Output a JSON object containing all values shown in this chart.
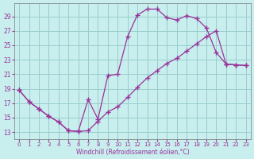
{
  "bg_color": "#c8eeee",
  "grid_color": "#99cccc",
  "line_color": "#993399",
  "xlim": [
    -0.5,
    23.5
  ],
  "ylim": [
    12.0,
    30.8
  ],
  "xticks": [
    0,
    1,
    2,
    3,
    4,
    5,
    6,
    7,
    8,
    9,
    10,
    11,
    12,
    13,
    14,
    15,
    16,
    17,
    18,
    19,
    20,
    21,
    22,
    23
  ],
  "yticks": [
    13,
    15,
    17,
    19,
    21,
    23,
    25,
    27,
    29
  ],
  "xlabel": "Windchill (Refroidissement éolien,°C)",
  "upper_x": [
    0,
    1,
    2,
    3,
    4,
    5,
    6,
    7,
    8,
    9,
    10,
    11,
    12,
    13,
    14,
    15,
    16,
    17,
    18,
    19,
    20,
    21,
    22,
    23
  ],
  "upper_y": [
    18.8,
    17.2,
    16.2,
    15.2,
    14.4,
    13.2,
    13.1,
    17.5,
    14.8,
    20.8,
    21.0,
    26.2,
    29.2,
    30.0,
    30.0,
    28.8,
    28.5,
    29.1,
    28.7,
    27.4,
    24.0,
    22.4,
    22.3,
    22.2
  ],
  "lower_x": [
    0,
    1,
    2,
    3,
    4,
    5,
    6,
    7,
    8,
    9,
    10,
    11,
    12,
    13,
    14,
    15,
    16,
    17,
    18,
    19,
    20,
    21,
    22,
    23
  ],
  "lower_y": [
    18.8,
    17.2,
    16.2,
    15.2,
    14.4,
    13.2,
    13.1,
    13.2,
    14.5,
    15.8,
    16.5,
    17.8,
    19.2,
    20.5,
    21.5,
    22.5,
    23.2,
    24.2,
    25.2,
    26.2,
    27.0,
    22.4,
    22.3,
    22.2
  ]
}
